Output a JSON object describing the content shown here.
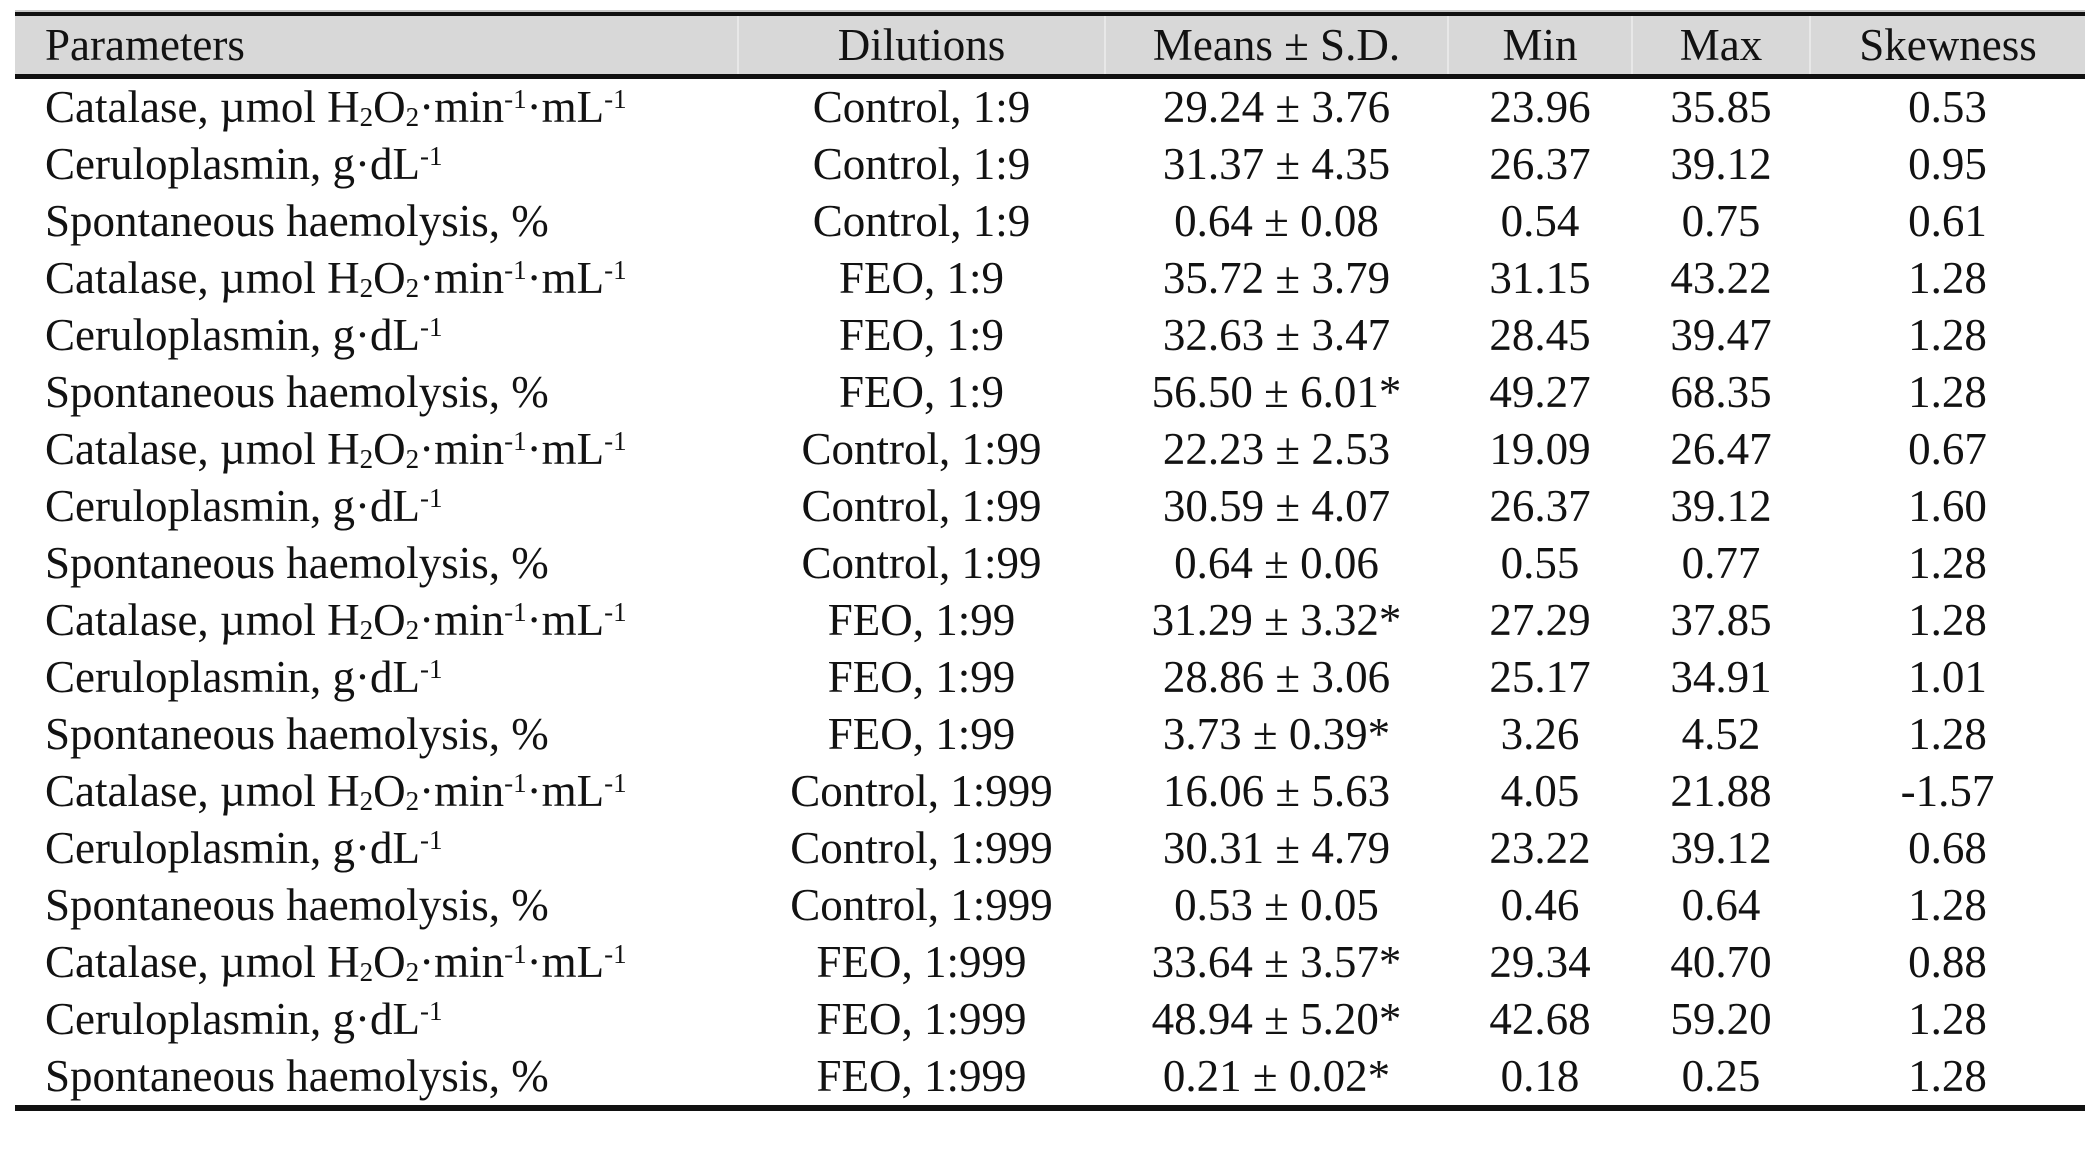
{
  "styles": {
    "header_background": "#d8d8d8",
    "rule_color": "#111111",
    "header_separator_color": "#e8e8e8",
    "text_color": "#121212"
  },
  "table": {
    "columns": [
      {
        "label": "Parameters",
        "align": "left"
      },
      {
        "label": "Dilutions",
        "align": "center"
      },
      {
        "label": "Means ± S.D.",
        "align": "center"
      },
      {
        "label": "Min",
        "align": "center"
      },
      {
        "label": "Max",
        "align": "center"
      },
      {
        "label": "Skewness",
        "align": "center"
      }
    ],
    "rows": [
      {
        "parameter": [
          "Catalase, µmol H",
          {
            "sub": "2"
          },
          "O",
          {
            "sub": "2"
          },
          "·min",
          {
            "sup": "-1"
          },
          "·mL",
          {
            "sup": "-1"
          }
        ],
        "dilution": "Control, 1:9",
        "mean_sd": "29.24 ± 3.76",
        "min": "23.96",
        "max": "35.85",
        "skewness": "0.53"
      },
      {
        "parameter": [
          "Ceruloplasmin, g·dL",
          {
            "sup": "-1"
          }
        ],
        "dilution": "Control, 1:9",
        "mean_sd": "31.37 ± 4.35",
        "min": "26.37",
        "max": "39.12",
        "skewness": "0.95"
      },
      {
        "parameter": [
          "Spontaneous haemolysis, %"
        ],
        "dilution": "Control, 1:9",
        "mean_sd": "0.64 ± 0.08",
        "min": "0.54",
        "max": "0.75",
        "skewness": "0.61"
      },
      {
        "parameter": [
          "Catalase, µmol H",
          {
            "sub": "2"
          },
          "O",
          {
            "sub": "2"
          },
          "·min",
          {
            "sup": "-1"
          },
          "·mL",
          {
            "sup": "-1"
          }
        ],
        "dilution": "FEO, 1:9",
        "mean_sd": "35.72 ± 3.79",
        "min": "31.15",
        "max": "43.22",
        "skewness": "1.28"
      },
      {
        "parameter": [
          "Ceruloplasmin, g·dL",
          {
            "sup": "-1"
          }
        ],
        "dilution": "FEO, 1:9",
        "mean_sd": "32.63 ± 3.47",
        "min": "28.45",
        "max": "39.47",
        "skewness": "1.28"
      },
      {
        "parameter": [
          "Spontaneous haemolysis, %"
        ],
        "dilution": "FEO, 1:9",
        "mean_sd": "56.50 ± 6.01*",
        "min": "49.27",
        "max": "68.35",
        "skewness": "1.28"
      },
      {
        "parameter": [
          "Catalase, µmol H",
          {
            "sub": "2"
          },
          "O",
          {
            "sub": "2"
          },
          "·min",
          {
            "sup": "-1"
          },
          "·mL",
          {
            "sup": "-1"
          }
        ],
        "dilution": "Control, 1:99",
        "mean_sd": "22.23 ± 2.53",
        "min": "19.09",
        "max": "26.47",
        "skewness": "0.67"
      },
      {
        "parameter": [
          "Ceruloplasmin, g·dL",
          {
            "sup": "-1"
          }
        ],
        "dilution": "Control, 1:99",
        "mean_sd": "30.59 ± 4.07",
        "min": "26.37",
        "max": "39.12",
        "skewness": "1.60"
      },
      {
        "parameter": [
          "Spontaneous haemolysis, %"
        ],
        "dilution": "Control, 1:99",
        "mean_sd": "0.64 ± 0.06",
        "min": "0.55",
        "max": "0.77",
        "skewness": "1.28"
      },
      {
        "parameter": [
          "Catalase, µmol H",
          {
            "sub": "2"
          },
          "O",
          {
            "sub": "2"
          },
          "·min",
          {
            "sup": "-1"
          },
          "·mL",
          {
            "sup": "-1"
          }
        ],
        "dilution": "FEO, 1:99",
        "mean_sd": "31.29 ± 3.32*",
        "min": "27.29",
        "max": "37.85",
        "skewness": "1.28"
      },
      {
        "parameter": [
          "Ceruloplasmin, g·dL",
          {
            "sup": "-1"
          }
        ],
        "dilution": "FEO, 1:99",
        "mean_sd": "28.86 ± 3.06",
        "min": "25.17",
        "max": "34.91",
        "skewness": "1.01"
      },
      {
        "parameter": [
          "Spontaneous haemolysis, %"
        ],
        "dilution": "FEO, 1:99",
        "mean_sd": "3.73 ± 0.39*",
        "min": "3.26",
        "max": "4.52",
        "skewness": "1.28"
      },
      {
        "parameter": [
          "Catalase, µmol H",
          {
            "sub": "2"
          },
          "O",
          {
            "sub": "2"
          },
          "·min",
          {
            "sup": "-1"
          },
          "·mL",
          {
            "sup": "-1"
          }
        ],
        "dilution": "Control, 1:999",
        "mean_sd": "16.06 ± 5.63",
        "min": "4.05",
        "max": "21.88",
        "skewness": "-1.57"
      },
      {
        "parameter": [
          "Ceruloplasmin, g·dL",
          {
            "sup": "-1"
          }
        ],
        "dilution": "Control, 1:999",
        "mean_sd": "30.31 ± 4.79",
        "min": "23.22",
        "max": "39.12",
        "skewness": "0.68"
      },
      {
        "parameter": [
          "Spontaneous haemolysis, %"
        ],
        "dilution": "Control, 1:999",
        "mean_sd": "0.53 ± 0.05",
        "min": "0.46",
        "max": "0.64",
        "skewness": "1.28"
      },
      {
        "parameter": [
          "Catalase, µmol H",
          {
            "sub": "2"
          },
          "O",
          {
            "sub": "2"
          },
          "·min",
          {
            "sup": "-1"
          },
          "·mL",
          {
            "sup": "-1"
          }
        ],
        "dilution": "FEO, 1:999",
        "mean_sd": "33.64 ± 3.57*",
        "min": "29.34",
        "max": "40.70",
        "skewness": "0.88"
      },
      {
        "parameter": [
          "Ceruloplasmin, g·dL",
          {
            "sup": "-1"
          }
        ],
        "dilution": "FEO, 1:999",
        "mean_sd": "48.94 ± 5.20*",
        "min": "42.68",
        "max": "59.20",
        "skewness": "1.28"
      },
      {
        "parameter": [
          "Spontaneous haemolysis, %"
        ],
        "dilution": "FEO, 1:999",
        "mean_sd": "0.21 ± 0.02*",
        "min": "0.18",
        "max": "0.25",
        "skewness": "1.28"
      }
    ]
  }
}
